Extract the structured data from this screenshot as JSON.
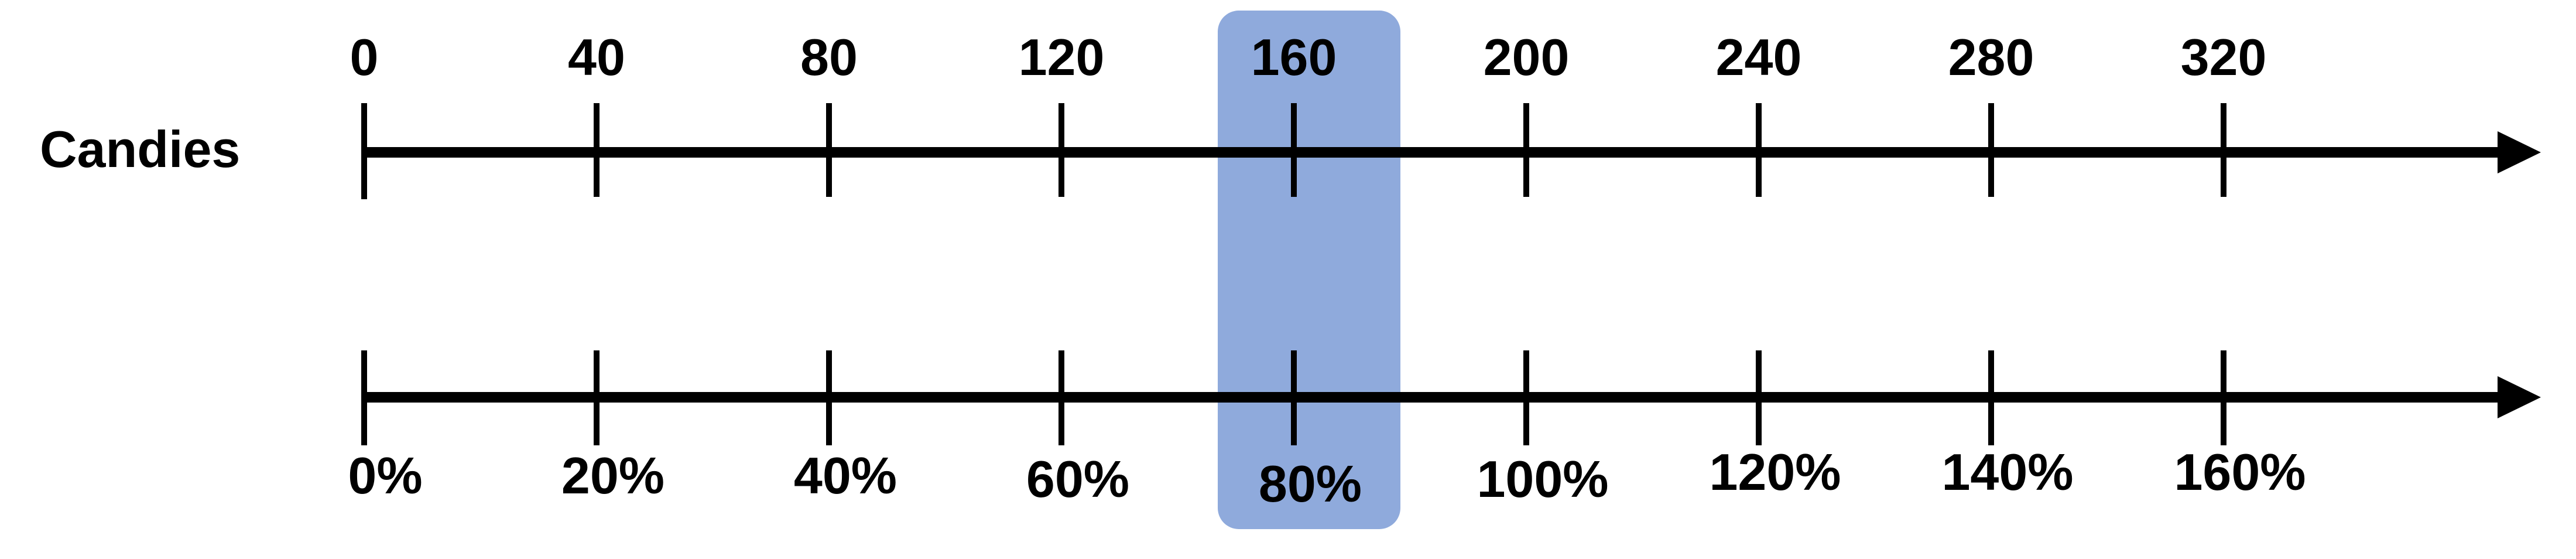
{
  "diagram": {
    "row_label": "Candies",
    "top_line": {
      "values": [
        0,
        40,
        80,
        120,
        160,
        200,
        240,
        280,
        320
      ],
      "labels": [
        "0",
        "40",
        "80",
        "120",
        "160",
        "200",
        "240",
        "280",
        "320"
      ]
    },
    "bottom_line": {
      "values": [
        0,
        20,
        40,
        60,
        80,
        100,
        120,
        140,
        160
      ],
      "labels": [
        "0%",
        "20%",
        "40%",
        "60%",
        "80%",
        "100%",
        "120%",
        "140%",
        "160%"
      ]
    },
    "highlighted_value": 160,
    "highlighted_percent": "80%",
    "highlight_color": "#8faadc",
    "line_color": "#000000"
  }
}
